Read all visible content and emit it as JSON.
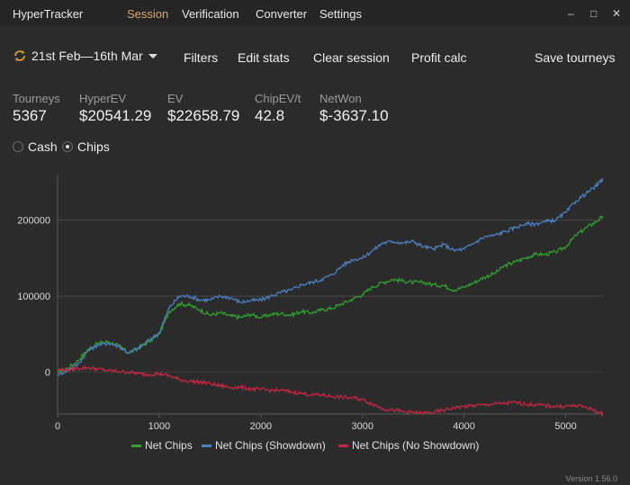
{
  "window": {
    "title": "HyperTracker",
    "nav": [
      "Session",
      "Verification",
      "Converter",
      "Settings"
    ],
    "active_nav": "Session",
    "minimize_glyph": "–",
    "maximize_glyph": "□",
    "close_glyph": "✕"
  },
  "toolbar": {
    "date_range": "21st Feb—16th Mar",
    "filters": "Filters",
    "edit_stats": "Edit stats",
    "clear_session": "Clear session",
    "profit_calc": "Profit calc",
    "save_tourneys": "Save tourneys"
  },
  "stats": [
    {
      "label": "Tourneys",
      "value": "5367"
    },
    {
      "label": "HyperEV",
      "value": "$20541.29"
    },
    {
      "label": "EV",
      "value": "$22658.79"
    },
    {
      "label": "ChipEV/t",
      "value": "42.8"
    },
    {
      "label": "NetWon",
      "value": "$-3637.10"
    }
  ],
  "mode": {
    "options": [
      "Cash",
      "Chips"
    ],
    "selected": "Chips"
  },
  "chart_data": {
    "type": "line",
    "title": "",
    "xlabel": "",
    "ylabel": "",
    "xlim": [
      0,
      5367
    ],
    "ylim": [
      -55000,
      260000
    ],
    "xticks": [
      0,
      1000,
      2000,
      3000,
      4000,
      5000
    ],
    "yticks": [
      0,
      100000,
      200000
    ],
    "grid": "horizontal",
    "legend": "bottom",
    "series": [
      {
        "name": "Net Chips",
        "color": "#2fa12f",
        "x": [
          0,
          100,
          200,
          300,
          400,
          500,
          600,
          700,
          800,
          900,
          1000,
          1100,
          1200,
          1300,
          1400,
          1500,
          1600,
          1700,
          1800,
          1900,
          2000,
          2100,
          2200,
          2300,
          2400,
          2500,
          2600,
          2700,
          2800,
          2900,
          3000,
          3100,
          3200,
          3300,
          3400,
          3500,
          3600,
          3700,
          3800,
          3900,
          4000,
          4100,
          4200,
          4300,
          4400,
          4500,
          4600,
          4700,
          4800,
          4900,
          5000,
          5100,
          5200,
          5300,
          5367
        ],
        "y": [
          0,
          5000,
          15000,
          30000,
          38000,
          40000,
          35000,
          25000,
          32000,
          40000,
          50000,
          80000,
          90000,
          88000,
          82000,
          75000,
          78000,
          74000,
          72000,
          76000,
          72000,
          76000,
          77000,
          75000,
          80000,
          78000,
          82000,
          84000,
          90000,
          96000,
          102000,
          112000,
          118000,
          122000,
          120000,
          118000,
          118000,
          115000,
          114000,
          108000,
          112000,
          118000,
          125000,
          130000,
          140000,
          145000,
          150000,
          155000,
          155000,
          158000,
          165000,
          180000,
          190000,
          198000,
          205000
        ]
      },
      {
        "name": "Net Chips (Showdown)",
        "color": "#4a7fc0",
        "x": [
          0,
          100,
          200,
          300,
          400,
          500,
          600,
          700,
          800,
          900,
          1000,
          1100,
          1200,
          1300,
          1400,
          1500,
          1600,
          1700,
          1800,
          1900,
          2000,
          2100,
          2200,
          2300,
          2400,
          2500,
          2600,
          2700,
          2800,
          2900,
          3000,
          3100,
          3200,
          3300,
          3400,
          3500,
          3600,
          3700,
          3800,
          3900,
          4000,
          4100,
          4200,
          4300,
          4400,
          4500,
          4600,
          4700,
          4800,
          4900,
          5000,
          5100,
          5200,
          5300,
          5367
        ],
        "y": [
          -3000,
          2000,
          10000,
          28000,
          36000,
          38000,
          34000,
          25000,
          32000,
          42000,
          52000,
          85000,
          100000,
          100000,
          95000,
          95000,
          100000,
          98000,
          92000,
          94000,
          95000,
          100000,
          105000,
          108000,
          115000,
          118000,
          122000,
          128000,
          140000,
          148000,
          150000,
          160000,
          170000,
          172000,
          170000,
          172000,
          165000,
          162000,
          168000,
          160000,
          162000,
          170000,
          178000,
          180000,
          185000,
          190000,
          195000,
          195000,
          198000,
          200000,
          210000,
          225000,
          235000,
          245000,
          255000
        ]
      },
      {
        "name": "Net Chips (No Showdown)",
        "color": "#c42642",
        "x": [
          0,
          100,
          200,
          300,
          400,
          500,
          600,
          700,
          800,
          900,
          1000,
          1100,
          1200,
          1300,
          1400,
          1500,
          1600,
          1700,
          1800,
          1900,
          2000,
          2100,
          2200,
          2300,
          2400,
          2500,
          2600,
          2700,
          2800,
          2900,
          3000,
          3100,
          3200,
          3300,
          3400,
          3500,
          3600,
          3700,
          3800,
          3900,
          4000,
          4100,
          4200,
          4300,
          4400,
          4500,
          4600,
          4700,
          4800,
          4900,
          5000,
          5100,
          5200,
          5300,
          5367
        ],
        "y": [
          3000,
          3000,
          5000,
          6000,
          4000,
          2000,
          1000,
          0,
          -2000,
          -3000,
          -2000,
          -5000,
          -10000,
          -12000,
          -13000,
          -15000,
          -18000,
          -20000,
          -20000,
          -22000,
          -23000,
          -24000,
          -24000,
          -26000,
          -28000,
          -30000,
          -30000,
          -32000,
          -33000,
          -34000,
          -36000,
          -42000,
          -48000,
          -50000,
          -52000,
          -53000,
          -54000,
          -53000,
          -50000,
          -47000,
          -45000,
          -44000,
          -43000,
          -42000,
          -41000,
          -40000,
          -42000,
          -43000,
          -44000,
          -45000,
          -45000,
          -44000,
          -46000,
          -52000,
          -55000
        ]
      }
    ]
  },
  "version": "Version 1.56.0"
}
